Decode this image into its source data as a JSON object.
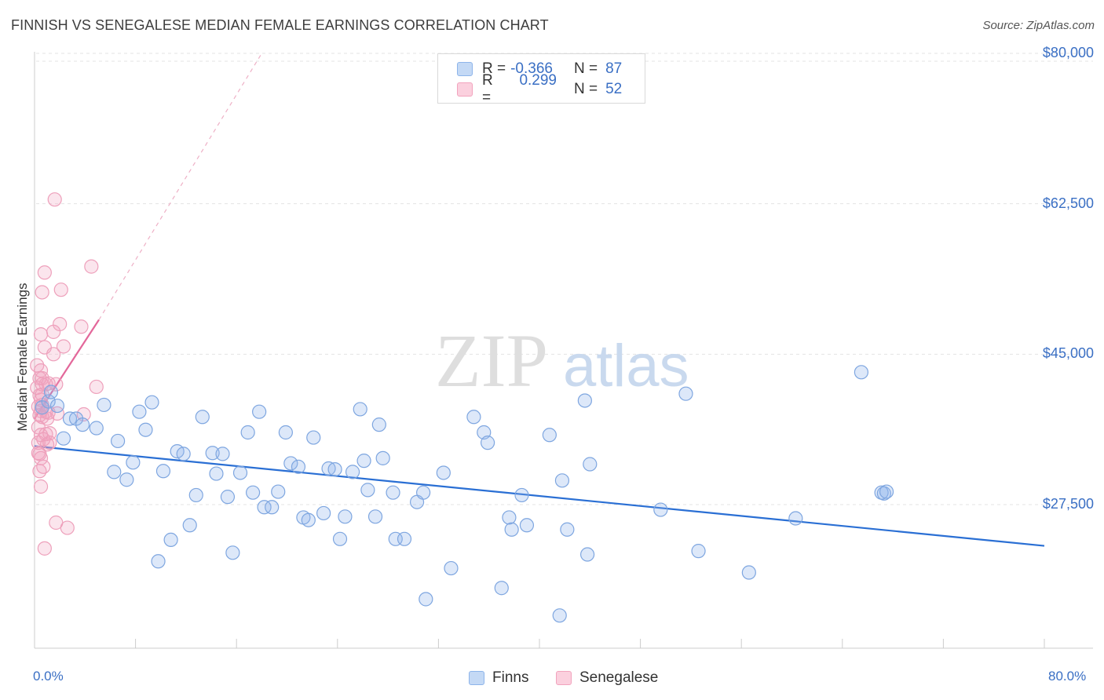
{
  "header": {
    "title": "FINNISH VS SENEGALESE MEDIAN FEMALE EARNINGS CORRELATION CHART",
    "source": "Source: ZipAtlas.com"
  },
  "legend": {
    "r_label": "R =",
    "n_label": "N =",
    "rows": [
      {
        "r": "-0.366",
        "n": "87",
        "color": "#8db4ea"
      },
      {
        "r": "0.299",
        "n": "52",
        "color": "#f2a3bd"
      }
    ]
  },
  "bottom_legend": {
    "finns": "Finns",
    "senegalese": "Senegalese"
  },
  "watermark": {
    "zip": "ZIP",
    "atlas": "atlas"
  },
  "chart_data": {
    "type": "scatter",
    "title": "FINNISH VS SENEGALESE MEDIAN FEMALE EARNINGS CORRELATION CHART",
    "ylabel": "Median Female Earnings",
    "xlabel": "",
    "xlim": [
      0,
      80
    ],
    "ylim": [
      10000,
      82000
    ],
    "x_tick_labels": [
      "0.0%",
      "80.0%"
    ],
    "y_ticks": [
      27500,
      45000,
      62500,
      80000
    ],
    "y_tick_labels": [
      "$27,500",
      "$45,000",
      "$62,500",
      "$80,000"
    ],
    "grid": true,
    "legend_position": "top-center",
    "series": [
      {
        "name": "Finns",
        "color": "#8db4ea",
        "trend": {
          "x": [
            0,
            80
          ],
          "y": [
            34300,
            22700
          ],
          "color": "#2a6fd4"
        },
        "points": [
          [
            0.6,
            38.8
          ],
          [
            1.1,
            39.5
          ],
          [
            1.3,
            40.6
          ],
          [
            1.8,
            39.0
          ],
          [
            2.3,
            35.2
          ],
          [
            2.8,
            37.5
          ],
          [
            3.3,
            37.5
          ],
          [
            3.8,
            36.8
          ],
          [
            4.9,
            36.4
          ],
          [
            5.5,
            39.1
          ],
          [
            6.3,
            31.3
          ],
          [
            6.6,
            34.9
          ],
          [
            7.3,
            30.4
          ],
          [
            7.8,
            32.4
          ],
          [
            8.3,
            38.3
          ],
          [
            8.8,
            36.2
          ],
          [
            9.3,
            39.4
          ],
          [
            9.8,
            20.9
          ],
          [
            10.2,
            31.4
          ],
          [
            10.8,
            23.4
          ],
          [
            11.3,
            33.7
          ],
          [
            11.8,
            33.4
          ],
          [
            12.3,
            25.1
          ],
          [
            12.8,
            28.6
          ],
          [
            13.3,
            37.7
          ],
          [
            14.1,
            33.5
          ],
          [
            14.4,
            31.1
          ],
          [
            14.9,
            33.4
          ],
          [
            15.3,
            28.4
          ],
          [
            15.7,
            21.9
          ],
          [
            16.3,
            31.2
          ],
          [
            16.9,
            35.9
          ],
          [
            17.3,
            28.9
          ],
          [
            17.8,
            38.3
          ],
          [
            18.2,
            27.2
          ],
          [
            18.8,
            27.2
          ],
          [
            19.3,
            29.0
          ],
          [
            19.9,
            35.9
          ],
          [
            20.3,
            32.3
          ],
          [
            20.9,
            31.9
          ],
          [
            21.3,
            26.0
          ],
          [
            21.7,
            25.7
          ],
          [
            22.1,
            35.3
          ],
          [
            22.9,
            26.5
          ],
          [
            23.3,
            31.7
          ],
          [
            23.8,
            31.6
          ],
          [
            24.2,
            23.5
          ],
          [
            24.6,
            26.1
          ],
          [
            25.2,
            31.3
          ],
          [
            25.8,
            38.6
          ],
          [
            26.1,
            32.6
          ],
          [
            26.4,
            29.2
          ],
          [
            27.0,
            26.1
          ],
          [
            27.3,
            36.8
          ],
          [
            27.6,
            32.9
          ],
          [
            28.4,
            28.9
          ],
          [
            28.6,
            23.5
          ],
          [
            29.3,
            23.5
          ],
          [
            30.3,
            27.8
          ],
          [
            30.8,
            28.9
          ],
          [
            31.0,
            16.5
          ],
          [
            32.4,
            31.2
          ],
          [
            33.0,
            20.1
          ],
          [
            34.8,
            37.7
          ],
          [
            35.6,
            35.9
          ],
          [
            35.9,
            34.7
          ],
          [
            37.0,
            17.8
          ],
          [
            37.6,
            26.0
          ],
          [
            37.8,
            24.6
          ],
          [
            38.6,
            28.6
          ],
          [
            39.0,
            25.1
          ],
          [
            40.8,
            35.6
          ],
          [
            41.6,
            14.6
          ],
          [
            41.8,
            30.3
          ],
          [
            42.2,
            24.6
          ],
          [
            43.6,
            39.6
          ],
          [
            43.8,
            21.7
          ],
          [
            44.0,
            32.2
          ],
          [
            49.6,
            26.9
          ],
          [
            51.6,
            40.4
          ],
          [
            52.6,
            22.1
          ],
          [
            56.6,
            19.6
          ],
          [
            60.3,
            25.9
          ],
          [
            65.5,
            42.9
          ],
          [
            67.1,
            28.9
          ],
          [
            67.3,
            28.8
          ],
          [
            67.5,
            29.0
          ]
        ]
      },
      {
        "name": "Senegalese",
        "color": "#f2a3bd",
        "trend": {
          "x": [
            0,
            5.1
          ],
          "y": [
            37500,
            49000
          ],
          "color": "#e3679a"
        },
        "trend_extension": {
          "x": [
            5.1,
            18.0
          ],
          "y": [
            49000,
            80000
          ]
        },
        "points": [
          [
            0.2,
            43.7
          ],
          [
            0.2,
            41.1
          ],
          [
            0.3,
            38.9
          ],
          [
            0.3,
            36.5
          ],
          [
            0.3,
            34.7
          ],
          [
            0.4,
            42.2
          ],
          [
            0.4,
            40.2
          ],
          [
            0.4,
            37.9
          ],
          [
            0.4,
            33.4
          ],
          [
            0.4,
            31.4
          ],
          [
            0.5,
            47.3
          ],
          [
            0.5,
            43.1
          ],
          [
            0.5,
            39.7
          ],
          [
            0.5,
            38.4
          ],
          [
            0.5,
            35.6
          ],
          [
            0.5,
            32.9
          ],
          [
            0.5,
            29.6
          ],
          [
            0.6,
            52.2
          ],
          [
            0.6,
            42.2
          ],
          [
            0.6,
            40.3
          ],
          [
            0.6,
            39.1
          ],
          [
            0.6,
            37.7
          ],
          [
            0.7,
            35.1
          ],
          [
            0.7,
            31.9
          ],
          [
            0.8,
            22.4
          ],
          [
            0.8,
            54.5
          ],
          [
            0.8,
            45.8
          ],
          [
            0.9,
            41.5
          ],
          [
            0.9,
            38.3
          ],
          [
            0.9,
            35.7
          ],
          [
            1.0,
            37.5
          ],
          [
            1.0,
            34.5
          ],
          [
            1.1,
            41.6
          ],
          [
            1.1,
            38.2
          ],
          [
            1.2,
            35.8
          ],
          [
            1.2,
            34.7
          ],
          [
            1.5,
            47.6
          ],
          [
            1.5,
            45.0
          ],
          [
            1.6,
            63.0
          ],
          [
            1.7,
            25.4
          ],
          [
            1.7,
            41.5
          ],
          [
            1.8,
            38.1
          ],
          [
            2.0,
            48.5
          ],
          [
            2.1,
            52.5
          ],
          [
            2.3,
            45.9
          ],
          [
            2.6,
            24.8
          ],
          [
            3.7,
            48.2
          ],
          [
            3.9,
            38.0
          ],
          [
            4.5,
            55.2
          ],
          [
            4.9,
            41.2
          ],
          [
            0.3,
            33.5
          ],
          [
            0.6,
            41.5
          ]
        ]
      }
    ]
  }
}
